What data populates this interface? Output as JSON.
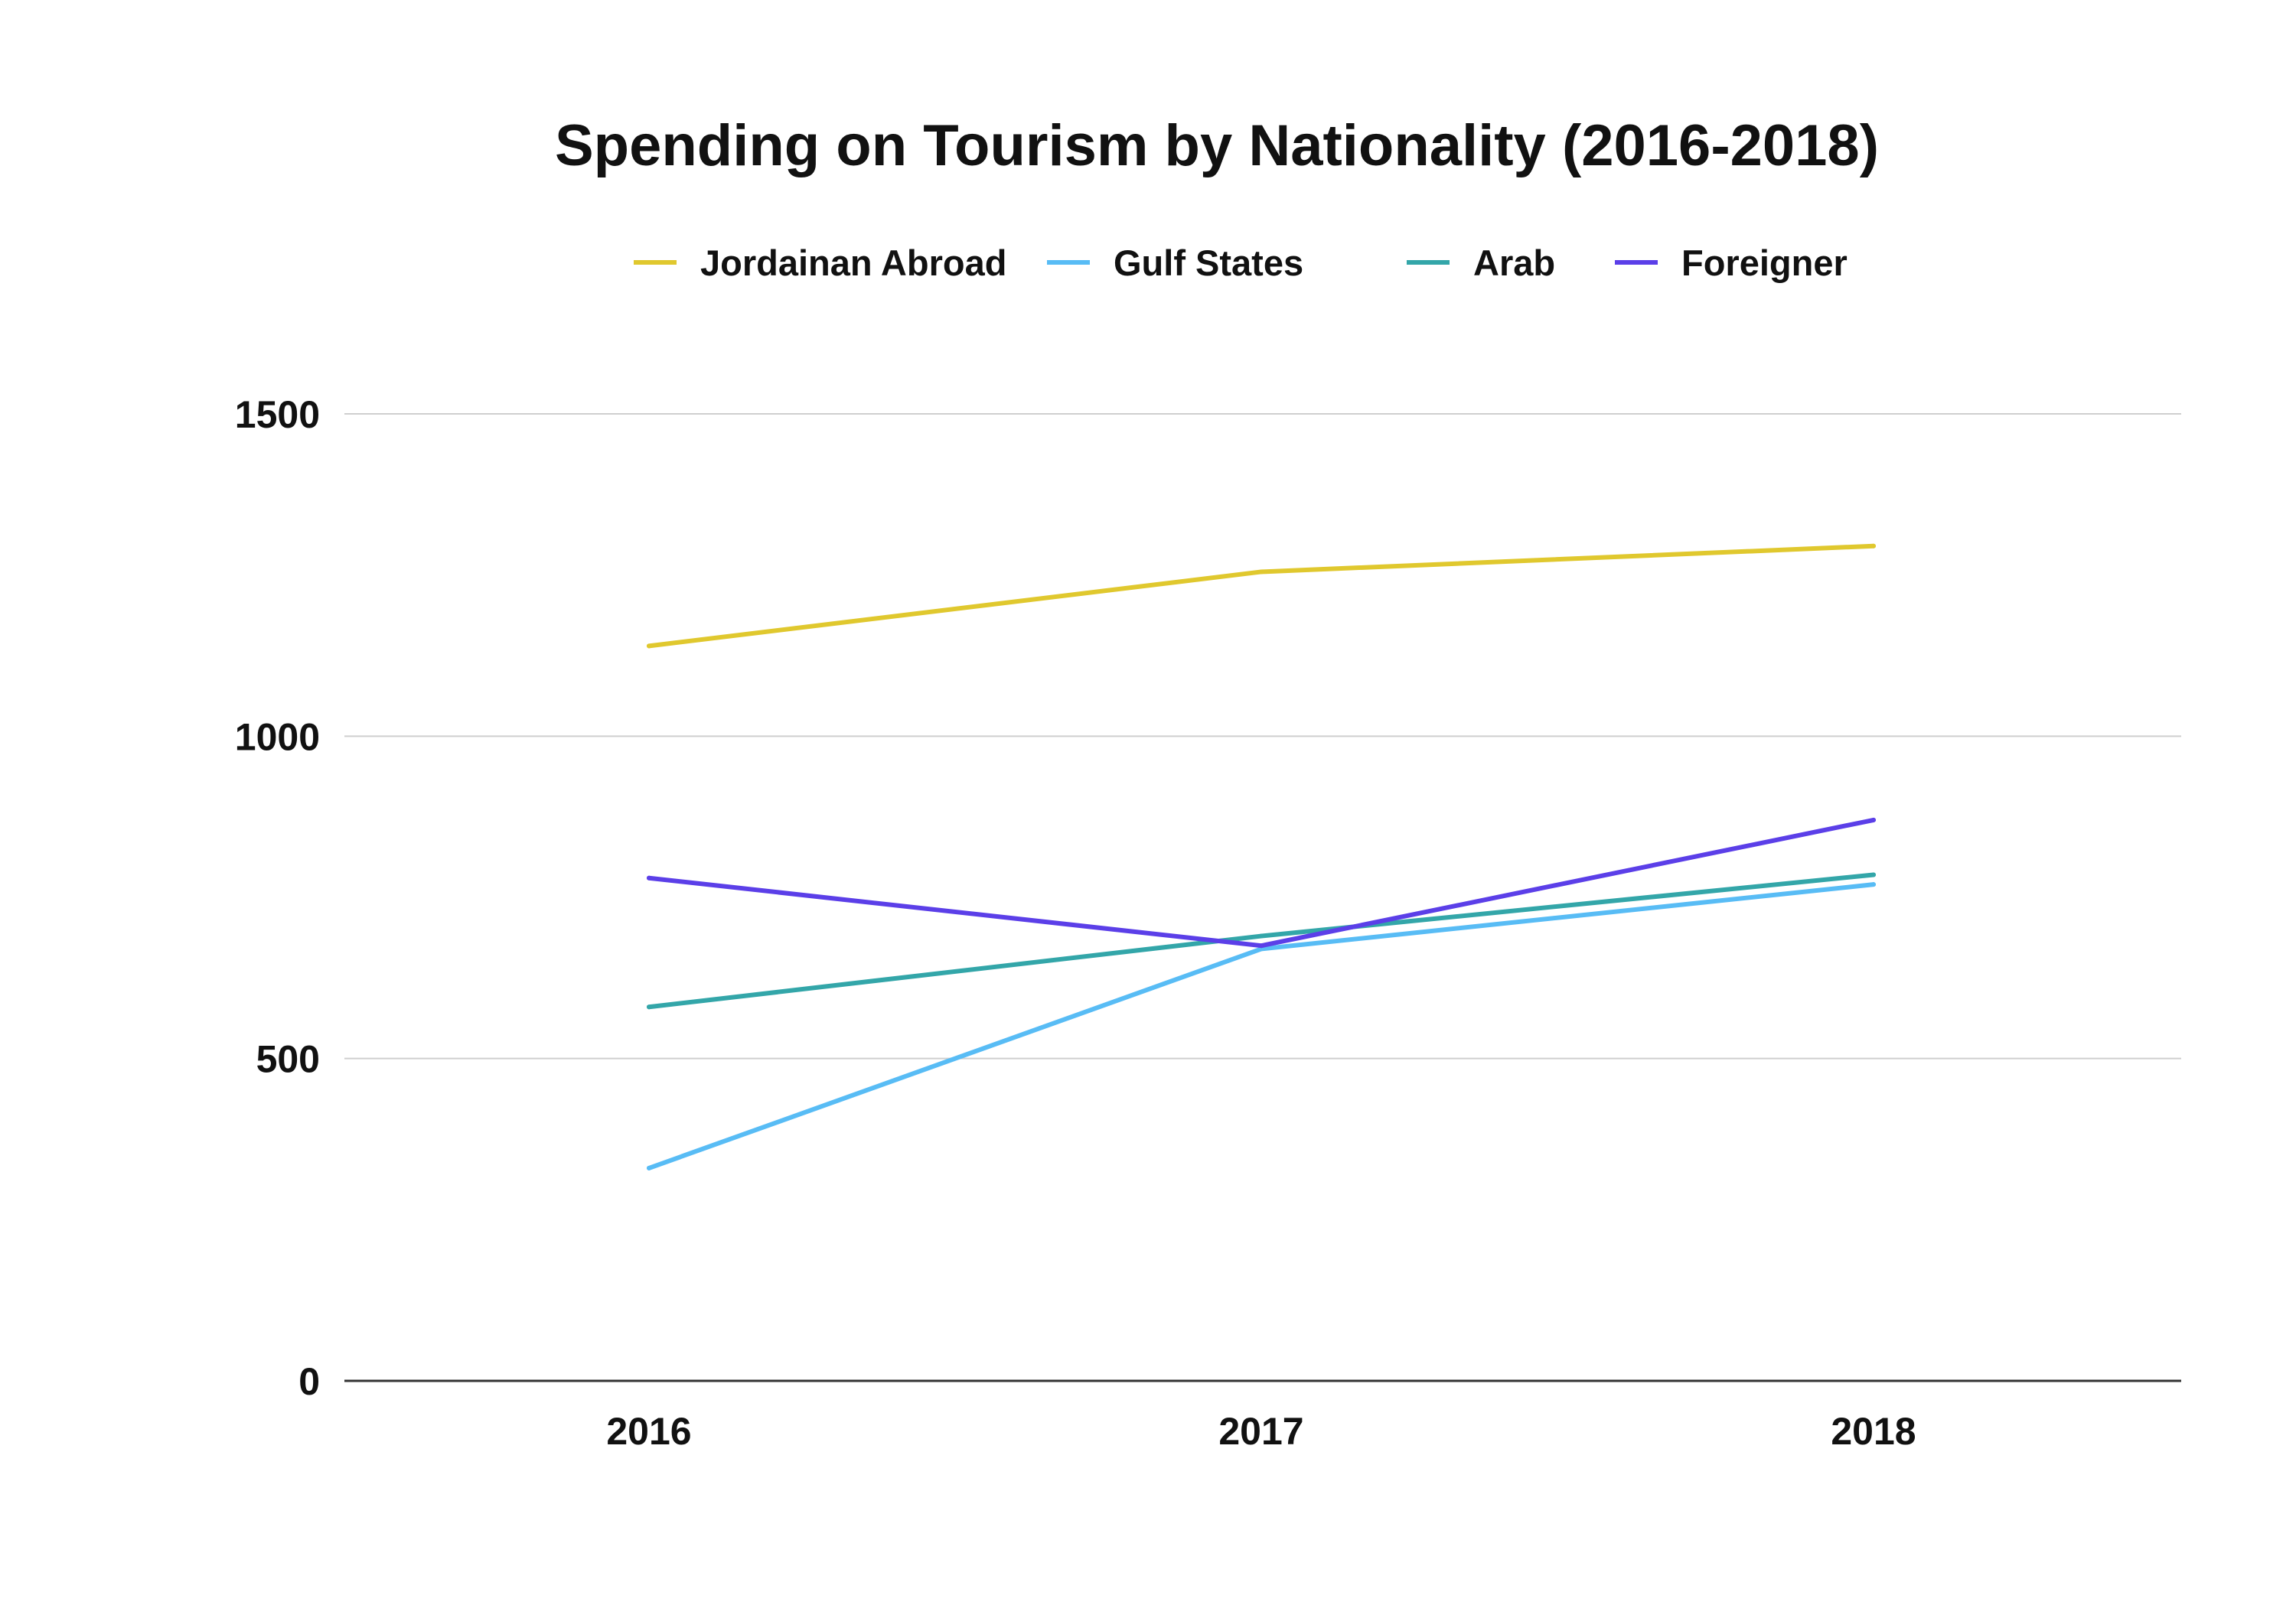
{
  "chart_data": {
    "type": "line",
    "title": "Spending on Tourism by Nationality (2016-2018)",
    "xlabel": "",
    "ylabel": "",
    "categories": [
      "2016",
      "2017",
      "2018"
    ],
    "ylim": [
      0,
      1500
    ],
    "yticks": [
      0,
      500,
      1000,
      1500
    ],
    "grid": true,
    "legend_position": "top-center",
    "series": [
      {
        "name": "Jordainan Abroad",
        "color": "#E0C82E",
        "values": [
          1140,
          1255,
          1295
        ]
      },
      {
        "name": "Gulf States",
        "color": "#58BCF5",
        "values": [
          330,
          670,
          770
        ]
      },
      {
        "name": "Arab",
        "color": "#33A6A9",
        "values": [
          580,
          690,
          785
        ]
      },
      {
        "name": "Foreigner",
        "color": "#5B3FE8",
        "values": [
          780,
          675,
          870
        ]
      }
    ]
  }
}
